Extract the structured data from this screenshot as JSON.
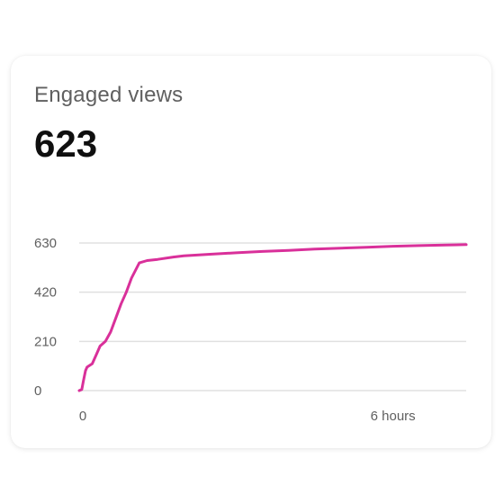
{
  "card": {
    "title": "Engaged views",
    "value": "623"
  },
  "chart_data": {
    "type": "line",
    "title": "",
    "xlabel": "",
    "ylabel": "",
    "x_unit": "hours",
    "xlim": [
      0,
      7.4
    ],
    "ylim": [
      0,
      630
    ],
    "grid": true,
    "line_color": "#d9309a",
    "grid_color": "#e0e0e0",
    "y_ticks": [
      {
        "value": 0,
        "label": "0"
      },
      {
        "value": 210,
        "label": "210"
      },
      {
        "value": 420,
        "label": "420"
      },
      {
        "value": 630,
        "label": "630"
      }
    ],
    "x_ticks": [
      {
        "value": 0,
        "label": "0"
      },
      {
        "value": 6,
        "label": "6 hours"
      }
    ],
    "series": [
      {
        "name": "",
        "x": [
          0,
          0.05,
          0.08,
          0.12,
          0.15,
          0.18,
          0.25,
          0.32,
          0.4,
          0.5,
          0.6,
          0.7,
          0.8,
          0.9,
          1.0,
          1.15,
          1.3,
          1.5,
          1.8,
          2.0,
          2.5,
          3.0,
          3.5,
          4.0,
          4.5,
          5.0,
          5.5,
          6.0,
          6.5,
          7.0,
          7.4
        ],
        "y": [
          0,
          5,
          40,
          85,
          100,
          105,
          115,
          150,
          190,
          210,
          250,
          310,
          370,
          420,
          480,
          545,
          555,
          560,
          570,
          575,
          582,
          588,
          594,
          598,
          604,
          608,
          612,
          616,
          619,
          621,
          623
        ]
      }
    ]
  }
}
